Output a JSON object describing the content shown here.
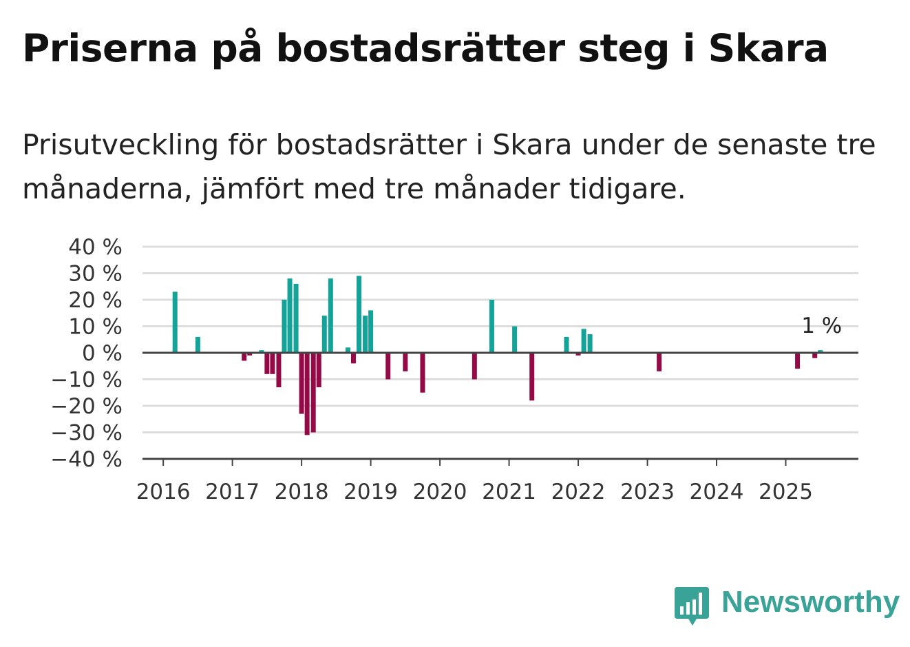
{
  "title": "Priserna på bostadsrätter steg i Skara",
  "subtitle": "Prisutveckling för bostadsrätter i Skara under de senaste tre månaderna, jämfört med tre månader tidigare.",
  "brand": {
    "name": "Newsworthy",
    "color": "#3aa397",
    "icon": "bar-chart-speech-bubble-icon"
  },
  "colors": {
    "positive": "#14a398",
    "negative": "#940a46",
    "grid": "#dddddd",
    "axis": "#444444"
  },
  "chart_data": {
    "type": "bar",
    "title": "Priserna på bostadsrätter steg i Skara",
    "subtitle": "Prisutveckling för bostadsrätter i Skara under de senaste tre månaderna, jämfört med tre månader tidigare.",
    "xlabel": "",
    "ylabel": "",
    "ylim": [
      -40,
      40
    ],
    "yticks": [
      40,
      30,
      20,
      10,
      0,
      -10,
      -20,
      -30,
      -40
    ],
    "ytick_labels": [
      "40 %",
      "30 %",
      "20 %",
      "10 %",
      "0 %",
      "−10 %",
      "−20 %",
      "−30 %",
      "−40 %"
    ],
    "x_range": [
      2015.7,
      2026.05
    ],
    "xticks": [
      2016,
      2017,
      2018,
      2019,
      2020,
      2021,
      2022,
      2023,
      2024,
      2025
    ],
    "xtick_labels": [
      "2016",
      "2017",
      "2018",
      "2019",
      "2020",
      "2021",
      "2022",
      "2023",
      "2024",
      "2025"
    ],
    "grid": true,
    "unit": "%",
    "bars": [
      {
        "x": 2016.17,
        "value": 23
      },
      {
        "x": 2016.5,
        "value": 6
      },
      {
        "x": 2017.17,
        "value": -3
      },
      {
        "x": 2017.25,
        "value": -1
      },
      {
        "x": 2017.42,
        "value": 1
      },
      {
        "x": 2017.5,
        "value": -8
      },
      {
        "x": 2017.58,
        "value": -8
      },
      {
        "x": 2017.67,
        "value": -13
      },
      {
        "x": 2017.75,
        "value": 20
      },
      {
        "x": 2017.83,
        "value": 28
      },
      {
        "x": 2017.92,
        "value": 26
      },
      {
        "x": 2018.0,
        "value": -23
      },
      {
        "x": 2018.08,
        "value": -31
      },
      {
        "x": 2018.17,
        "value": -30
      },
      {
        "x": 2018.25,
        "value": -13
      },
      {
        "x": 2018.33,
        "value": 14
      },
      {
        "x": 2018.42,
        "value": 28
      },
      {
        "x": 2018.67,
        "value": 2
      },
      {
        "x": 2018.75,
        "value": -4
      },
      {
        "x": 2018.83,
        "value": 29
      },
      {
        "x": 2018.92,
        "value": 14
      },
      {
        "x": 2019.0,
        "value": 16
      },
      {
        "x": 2019.25,
        "value": -10
      },
      {
        "x": 2019.5,
        "value": -7
      },
      {
        "x": 2019.75,
        "value": -15
      },
      {
        "x": 2020.5,
        "value": -10
      },
      {
        "x": 2020.75,
        "value": 20
      },
      {
        "x": 2021.08,
        "value": 10
      },
      {
        "x": 2021.33,
        "value": -18
      },
      {
        "x": 2021.83,
        "value": 6
      },
      {
        "x": 2022.0,
        "value": -1
      },
      {
        "x": 2022.08,
        "value": 9
      },
      {
        "x": 2022.17,
        "value": 7
      },
      {
        "x": 2023.17,
        "value": -7
      },
      {
        "x": 2025.17,
        "value": -6
      },
      {
        "x": 2025.42,
        "value": -2
      },
      {
        "x": 2025.5,
        "value": 1
      }
    ],
    "annotation": {
      "label": "1 %",
      "x": 2025.5,
      "value": 1
    }
  }
}
